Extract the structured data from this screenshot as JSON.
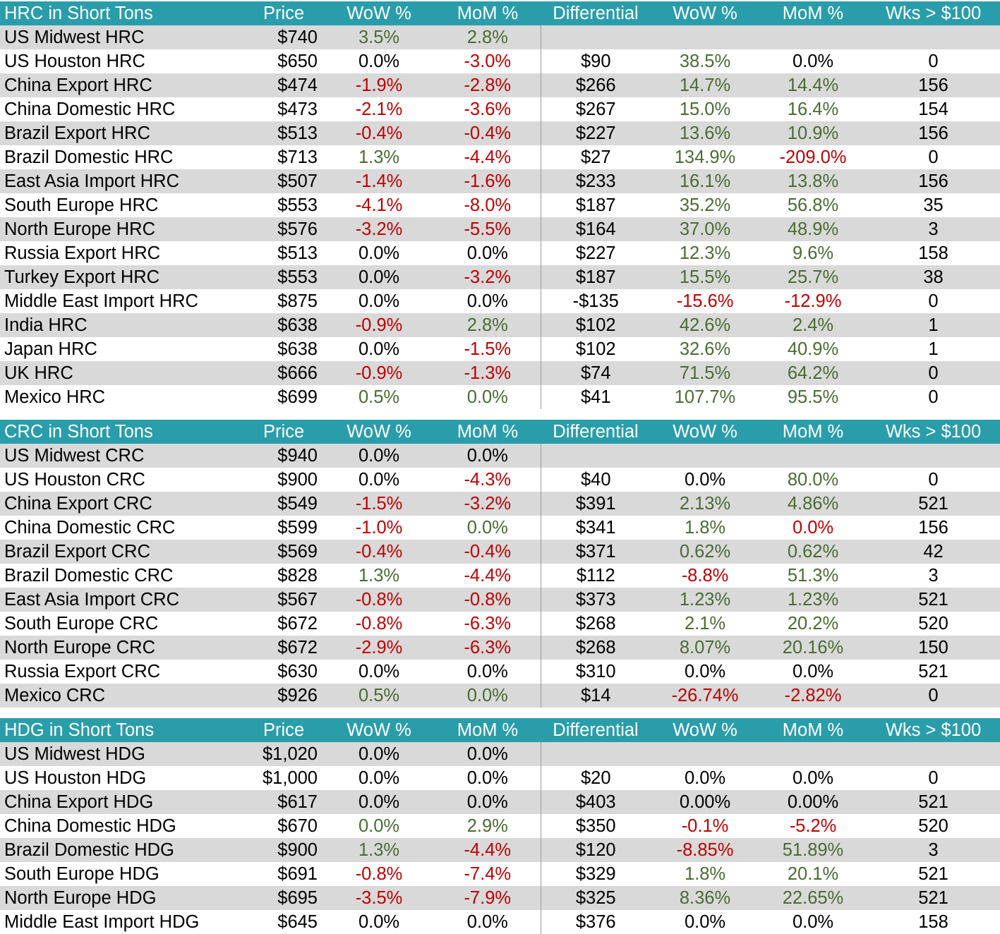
{
  "sections": [
    {
      "id": "hrc",
      "header": [
        "HRC in Short Tons",
        "Price",
        "WoW %",
        "MoM %",
        "Differential",
        "WoW %",
        "MoM %",
        "Wks > $100"
      ],
      "rows": [
        [
          "US Midwest HRC",
          "$740",
          "3.5%",
          "2.8%",
          "",
          "",
          "",
          ""
        ],
        [
          "US Houston HRC",
          "$650",
          "0.0%",
          "-3.0%",
          "$90",
          "38.5%",
          "0.0%",
          "0"
        ],
        [
          "China Export HRC",
          "$474",
          "-1.9%",
          "-2.8%",
          "$266",
          "14.7%",
          "14.4%",
          "156"
        ],
        [
          "China Domestic HRC",
          "$473",
          "-2.1%",
          "-3.6%",
          "$267",
          "15.0%",
          "16.4%",
          "154"
        ],
        [
          "Brazil Export HRC",
          "$513",
          "-0.4%",
          "-0.4%",
          "$227",
          "13.6%",
          "10.9%",
          "156"
        ],
        [
          "Brazil Domestic HRC",
          "$713",
          "1.3%",
          "-4.4%",
          "$27",
          "134.9%",
          "-209.0%",
          "0"
        ],
        [
          "East Asia Import HRC",
          "$507",
          "-1.4%",
          "-1.6%",
          "$233",
          "16.1%",
          "13.8%",
          "156"
        ],
        [
          "South Europe HRC",
          "$553",
          "-4.1%",
          "-8.0%",
          "$187",
          "35.2%",
          "56.8%",
          "35"
        ],
        [
          "North Europe HRC",
          "$576",
          "-3.2%",
          "-5.5%",
          "$164",
          "37.0%",
          "48.9%",
          "3"
        ],
        [
          "Russia Export HRC",
          "$513",
          "0.0%",
          "0.0%",
          "$227",
          "12.3%",
          "9.6%",
          "158"
        ],
        [
          "Turkey Export HRC",
          "$553",
          "0.0%",
          "-3.2%",
          "$187",
          "15.5%",
          "25.7%",
          "38"
        ],
        [
          "Middle East Import HRC",
          "$875",
          "0.0%",
          "0.0%",
          "-$135",
          "-15.6%",
          "-12.9%",
          "0"
        ],
        [
          "India HRC",
          "$638",
          "-0.9%",
          "2.8%",
          "$102",
          "42.6%",
          "2.4%",
          "1"
        ],
        [
          "Japan HRC",
          "$638",
          "0.0%",
          "-1.5%",
          "$102",
          "32.6%",
          "40.9%",
          "1"
        ],
        [
          "UK HRC",
          "$666",
          "-0.9%",
          "-1.3%",
          "$74",
          "71.5%",
          "64.2%",
          "0"
        ],
        [
          "Mexico HRC",
          "$699",
          "0.5%",
          "0.0%",
          "$41",
          "107.7%",
          "95.5%",
          "0"
        ]
      ],
      "colors": [
        [
          "p",
          "p"
        ],
        [
          "k",
          "n",
          "p",
          "k"
        ],
        [
          "n",
          "n",
          "p",
          "p"
        ],
        [
          "n",
          "n",
          "p",
          "p"
        ],
        [
          "n",
          "n",
          "p",
          "p"
        ],
        [
          "p",
          "n",
          "p",
          "n"
        ],
        [
          "n",
          "n",
          "p",
          "p"
        ],
        [
          "n",
          "n",
          "p",
          "p"
        ],
        [
          "n",
          "n",
          "p",
          "p"
        ],
        [
          "k",
          "k",
          "p",
          "p"
        ],
        [
          "k",
          "n",
          "p",
          "p"
        ],
        [
          "k",
          "k",
          "n",
          "n"
        ],
        [
          "n",
          "p",
          "p",
          "p"
        ],
        [
          "k",
          "n",
          "p",
          "p"
        ],
        [
          "n",
          "n",
          "p",
          "p"
        ],
        [
          "p",
          "p",
          "p",
          "p"
        ]
      ]
    },
    {
      "id": "crc",
      "header": [
        "CRC in Short Tons",
        "Price",
        "WoW %",
        "MoM %",
        "Differential",
        "WoW %",
        "MoM %",
        "Wks > $100"
      ],
      "rows": [
        [
          "US Midwest CRC",
          "$940",
          "0.0%",
          "0.0%",
          "",
          "",
          "",
          ""
        ],
        [
          "US Houston CRC",
          "$900",
          "0.0%",
          "-4.3%",
          "$40",
          "0.0%",
          "80.0%",
          "0"
        ],
        [
          "China Export CRC",
          "$549",
          "-1.5%",
          "-3.2%",
          "$391",
          "2.13%",
          "4.86%",
          "521"
        ],
        [
          "China Domestic CRC",
          "$599",
          "-1.0%",
          "0.0%",
          "$341",
          "1.8%",
          "0.0%",
          "156"
        ],
        [
          "Brazil Export CRC",
          "$569",
          "-0.4%",
          "-0.4%",
          "$371",
          "0.62%",
          "0.62%",
          "42"
        ],
        [
          "Brazil Domestic CRC",
          "$828",
          "1.3%",
          "-4.4%",
          "$112",
          "-8.8%",
          "51.3%",
          "3"
        ],
        [
          "East Asia Import CRC",
          "$567",
          "-0.8%",
          "-0.8%",
          "$373",
          "1.23%",
          "1.23%",
          "521"
        ],
        [
          "South Europe CRC",
          "$672",
          "-0.8%",
          "-6.3%",
          "$268",
          "2.1%",
          "20.2%",
          "520"
        ],
        [
          "North Europe CRC",
          "$672",
          "-2.9%",
          "-6.3%",
          "$268",
          "8.07%",
          "20.16%",
          "150"
        ],
        [
          "Russia Export CRC",
          "$630",
          "0.0%",
          "0.0%",
          "$310",
          "0.0%",
          "0.0%",
          "521"
        ],
        [
          "Mexico CRC",
          "$926",
          "0.5%",
          "0.0%",
          "$14",
          "-26.74%",
          "-2.82%",
          "0"
        ]
      ],
      "colors": [
        [
          "k",
          "k"
        ],
        [
          "k",
          "n",
          "k",
          "p"
        ],
        [
          "n",
          "n",
          "p",
          "p"
        ],
        [
          "n",
          "p",
          "p",
          "n"
        ],
        [
          "n",
          "n",
          "p",
          "p"
        ],
        [
          "p",
          "n",
          "n",
          "p"
        ],
        [
          "n",
          "n",
          "p",
          "p"
        ],
        [
          "n",
          "n",
          "p",
          "p"
        ],
        [
          "n",
          "n",
          "p",
          "p"
        ],
        [
          "k",
          "k",
          "k",
          "k"
        ],
        [
          "p",
          "p",
          "n",
          "n"
        ]
      ]
    },
    {
      "id": "hdg",
      "header": [
        "HDG in Short Tons",
        "Price",
        "WoW %",
        "MoM %",
        "Differential",
        "WoW %",
        "MoM %",
        "Wks > $100"
      ],
      "rows": [
        [
          "US Midwest HDG",
          "$1,020",
          "0.0%",
          "0.0%",
          "",
          "",
          "",
          ""
        ],
        [
          "US Houston HDG",
          "$1,000",
          "0.0%",
          "0.0%",
          "$20",
          "0.0%",
          "0.0%",
          "0"
        ],
        [
          "China Export HDG",
          "$617",
          "0.0%",
          "0.0%",
          "$403",
          "0.00%",
          "0.00%",
          "521"
        ],
        [
          "China Domestic HDG",
          "$670",
          "0.0%",
          "2.9%",
          "$350",
          "-0.1%",
          "-5.2%",
          "520"
        ],
        [
          "Brazil Domestic HDG",
          "$900",
          "1.3%",
          "-4.4%",
          "$120",
          "-8.85%",
          "51.89%",
          "3"
        ],
        [
          "South Europe HDG",
          "$691",
          "-0.8%",
          "-7.4%",
          "$329",
          "1.8%",
          "20.1%",
          "521"
        ],
        [
          "North Europe HDG",
          "$695",
          "-3.5%",
          "-7.9%",
          "$325",
          "8.36%",
          "22.65%",
          "521"
        ],
        [
          "Middle East Import HDG",
          "$645",
          "0.0%",
          "0.0%",
          "$376",
          "0.0%",
          "0.0%",
          "158"
        ]
      ],
      "colors": [
        [
          "k",
          "k"
        ],
        [
          "k",
          "k",
          "k",
          "k"
        ],
        [
          "k",
          "k",
          "k",
          "k"
        ],
        [
          "p",
          "p",
          "n",
          "n"
        ],
        [
          "p",
          "n",
          "n",
          "p"
        ],
        [
          "n",
          "n",
          "p",
          "p"
        ],
        [
          "n",
          "n",
          "p",
          "p"
        ],
        [
          "k",
          "k",
          "k",
          "k"
        ]
      ]
    }
  ],
  "palette": {
    "header_bg": "#2a9dab",
    "header_text": "#ffffff",
    "band": "#d9d9d9",
    "positive": "#4a6b32",
    "negative": "#c00000"
  }
}
